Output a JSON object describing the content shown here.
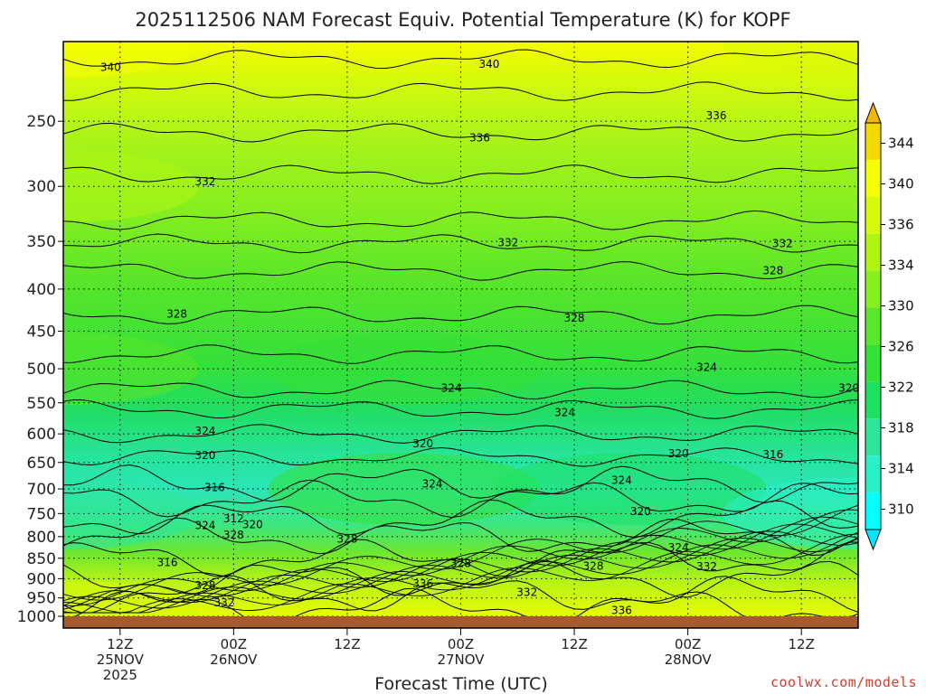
{
  "chart_data": {
    "type": "heatmap",
    "title": "2025112506 NAM Forecast Equiv. Potential Temperature (K) for KOPF",
    "xlabel": "Forecast Time (UTC)",
    "ylabel": "",
    "y_axis": {
      "ticks": [
        250,
        300,
        350,
        400,
        450,
        500,
        550,
        600,
        650,
        700,
        750,
        800,
        850,
        900,
        950,
        1000
      ],
      "range": [
        1000,
        200
      ],
      "scale": "log-pressure",
      "grid": true
    },
    "x_axis": {
      "range": [
        "2025-11-25T06Z",
        "2025-11-28T18Z"
      ],
      "ticks": [
        {
          "hour": 6,
          "line1": "12Z",
          "line2": "25NOV",
          "line3": "2025"
        },
        {
          "hour": 18,
          "line1": "00Z",
          "line2": "26NOV",
          "line3": ""
        },
        {
          "hour": 30,
          "line1": "12Z",
          "line2": "",
          "line3": ""
        },
        {
          "hour": 42,
          "line1": "00Z",
          "line2": "27NOV",
          "line3": ""
        },
        {
          "hour": 54,
          "line1": "12Z",
          "line2": "",
          "line3": ""
        },
        {
          "hour": 66,
          "line1": "00Z",
          "line2": "28NOV",
          "line3": ""
        },
        {
          "hour": 78,
          "line1": "12Z",
          "line2": "",
          "line3": ""
        }
      ],
      "grid": true
    },
    "colorbar": {
      "levels": [
        310,
        314,
        318,
        322,
        326,
        330,
        334,
        336,
        340,
        344
      ],
      "colors": [
        "#00ffff",
        "#2af0c8",
        "#2de69a",
        "#1ee060",
        "#34e036",
        "#5ae62a",
        "#86f01e",
        "#aef514",
        "#d6fa0a",
        "#f4ff00",
        "#f5d800"
      ],
      "unit": "K"
    },
    "field_points": [
      {
        "hour": 0,
        "pressure": 200,
        "theta_e": 343
      },
      {
        "hour": 0,
        "pressure": 300,
        "theta_e": 335
      },
      {
        "hour": 0,
        "pressure": 500,
        "theta_e": 327
      },
      {
        "hour": 0,
        "pressure": 750,
        "theta_e": 314
      },
      {
        "hour": 0,
        "pressure": 1000,
        "theta_e": 338
      },
      {
        "hour": 36,
        "pressure": 500,
        "theta_e": 325
      },
      {
        "hour": 36,
        "pressure": 700,
        "theta_e": 322
      },
      {
        "hour": 60,
        "pressure": 700,
        "theta_e": 318
      },
      {
        "hour": 84,
        "pressure": 750,
        "theta_e": 310
      },
      {
        "hour": 84,
        "pressure": 200,
        "theta_e": 339
      }
    ],
    "contour_labels": [
      {
        "text": "340",
        "hour": 5,
        "pressure": 215
      },
      {
        "text": "340",
        "hour": 45,
        "pressure": 213
      },
      {
        "text": "336",
        "hour": 69,
        "pressure": 246
      },
      {
        "text": "336",
        "hour": 44,
        "pressure": 262
      },
      {
        "text": "332",
        "hour": 15,
        "pressure": 296
      },
      {
        "text": "332",
        "hour": 47,
        "pressure": 351
      },
      {
        "text": "332",
        "hour": 76,
        "pressure": 352
      },
      {
        "text": "328",
        "hour": 12,
        "pressure": 429
      },
      {
        "text": "328",
        "hour": 54,
        "pressure": 434
      },
      {
        "text": "328",
        "hour": 75,
        "pressure": 380
      },
      {
        "text": "324",
        "hour": 41,
        "pressure": 528
      },
      {
        "text": "324",
        "hour": 53,
        "pressure": 565
      },
      {
        "text": "324",
        "hour": 68,
        "pressure": 498
      },
      {
        "text": "324",
        "hour": 15,
        "pressure": 595
      },
      {
        "text": "324",
        "hour": 39,
        "pressure": 690
      },
      {
        "text": "324",
        "hour": 59,
        "pressure": 683
      },
      {
        "text": "324",
        "hour": 15,
        "pressure": 775
      },
      {
        "text": "324",
        "hour": 65,
        "pressure": 825
      },
      {
        "text": "320",
        "hour": 15,
        "pressure": 637
      },
      {
        "text": "320",
        "hour": 38,
        "pressure": 617
      },
      {
        "text": "320",
        "hour": 83,
        "pressure": 528
      },
      {
        "text": "320",
        "hour": 65,
        "pressure": 634
      },
      {
        "text": "320",
        "hour": 61,
        "pressure": 746
      },
      {
        "text": "320",
        "hour": 20,
        "pressure": 773
      },
      {
        "text": "316",
        "hour": 75,
        "pressure": 636
      },
      {
        "text": "316",
        "hour": 16,
        "pressure": 697
      },
      {
        "text": "316",
        "hour": 11,
        "pressure": 860
      },
      {
        "text": "312",
        "hour": 18,
        "pressure": 761
      },
      {
        "text": "328",
        "hour": 18,
        "pressure": 796
      },
      {
        "text": "328",
        "hour": 30,
        "pressure": 805
      },
      {
        "text": "328",
        "hour": 42,
        "pressure": 862
      },
      {
        "text": "328",
        "hour": 56,
        "pressure": 869
      },
      {
        "text": "328",
        "hour": 15,
        "pressure": 917
      },
      {
        "text": "332",
        "hour": 68,
        "pressure": 870
      },
      {
        "text": "332",
        "hour": 49,
        "pressure": 935
      },
      {
        "text": "332",
        "hour": 17,
        "pressure": 963
      },
      {
        "text": "336",
        "hour": 38,
        "pressure": 913
      },
      {
        "text": "336",
        "hour": 59,
        "pressure": 984
      }
    ],
    "legend": "right colorbar"
  },
  "credit": "coolwx.com/models"
}
